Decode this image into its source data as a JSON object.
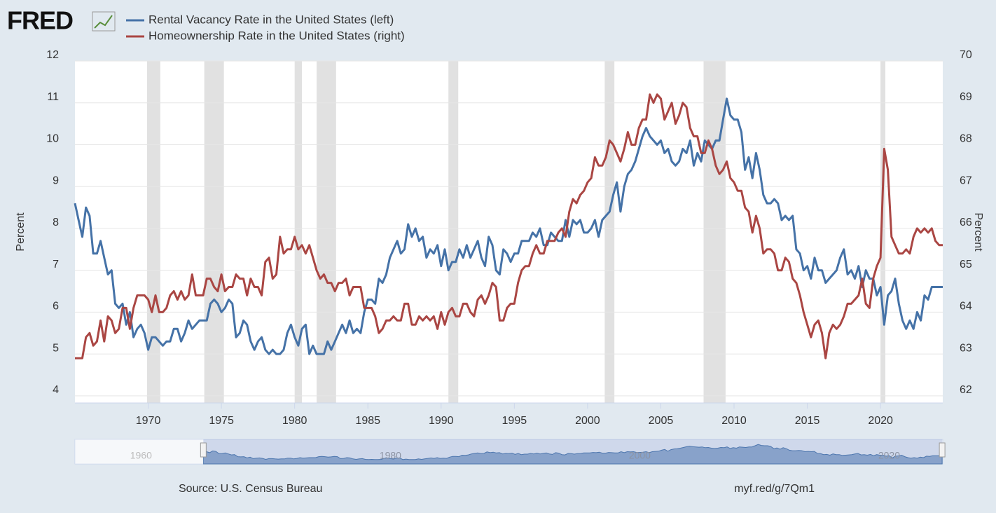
{
  "chart_data": {
    "type": "line",
    "logo": "FRED",
    "source": "Source: U.S. Census Bureau",
    "link": "myf.red/g/7Qm1",
    "ylabel": "Percent",
    "y2label": "Percent",
    "xlim": [
      1965,
      2024.25
    ],
    "xticks": [
      1970,
      1975,
      1980,
      1985,
      1990,
      1995,
      2000,
      2005,
      2010,
      2015,
      2020
    ],
    "ylim": [
      3.83,
      12
    ],
    "yticks": [
      4,
      5,
      6,
      7,
      8,
      9,
      10,
      11,
      12
    ],
    "y2lim": [
      61.83,
      70
    ],
    "y2ticks": [
      62,
      63,
      64,
      65,
      66,
      67,
      68,
      69,
      70
    ],
    "grid": true,
    "recessions": [
      [
        1969.92,
        1970.83
      ],
      [
        1973.83,
        1975.17
      ],
      [
        1980,
        1980.5
      ],
      [
        1981.5,
        1982.83
      ],
      [
        1990.5,
        1991.17
      ],
      [
        2001.17,
        2001.83
      ],
      [
        2007.92,
        2009.42
      ],
      [
        2020,
        2020.33
      ]
    ],
    "navigator": {
      "xlim": [
        1954.7,
        2024.3
      ],
      "xticks": [
        1960,
        1980,
        2000,
        2020
      ]
    },
    "x": [
      1965,
      1965.25,
      1965.5,
      1965.75,
      1966,
      1966.25,
      1966.5,
      1966.75,
      1967,
      1967.25,
      1967.5,
      1967.75,
      1968,
      1968.25,
      1968.5,
      1968.75,
      1969,
      1969.25,
      1969.5,
      1969.75,
      1970,
      1970.25,
      1970.5,
      1970.75,
      1971,
      1971.25,
      1971.5,
      1971.75,
      1972,
      1972.25,
      1972.5,
      1972.75,
      1973,
      1973.25,
      1973.5,
      1973.75,
      1974,
      1974.25,
      1974.5,
      1974.75,
      1975,
      1975.25,
      1975.5,
      1975.75,
      1976,
      1976.25,
      1976.5,
      1976.75,
      1977,
      1977.25,
      1977.5,
      1977.75,
      1978,
      1978.25,
      1978.5,
      1978.75,
      1979,
      1979.25,
      1979.5,
      1979.75,
      1980,
      1980.25,
      1980.5,
      1980.75,
      1981,
      1981.25,
      1981.5,
      1981.75,
      1982,
      1982.25,
      1982.5,
      1982.75,
      1983,
      1983.25,
      1983.5,
      1983.75,
      1984,
      1984.25,
      1984.5,
      1984.75,
      1985,
      1985.25,
      1985.5,
      1985.75,
      1986,
      1986.25,
      1986.5,
      1986.75,
      1987,
      1987.25,
      1987.5,
      1987.75,
      1988,
      1988.25,
      1988.5,
      1988.75,
      1989,
      1989.25,
      1989.5,
      1989.75,
      1990,
      1990.25,
      1990.5,
      1990.75,
      1991,
      1991.25,
      1991.5,
      1991.75,
      1992,
      1992.25,
      1992.5,
      1992.75,
      1993,
      1993.25,
      1993.5,
      1993.75,
      1994,
      1994.25,
      1994.5,
      1994.75,
      1995,
      1995.25,
      1995.5,
      1995.75,
      1996,
      1996.25,
      1996.5,
      1996.75,
      1997,
      1997.25,
      1997.5,
      1997.75,
      1998,
      1998.25,
      1998.5,
      1998.75,
      1999,
      1999.25,
      1999.5,
      1999.75,
      2000,
      2000.25,
      2000.5,
      2000.75,
      2001,
      2001.25,
      2001.5,
      2001.75,
      2002,
      2002.25,
      2002.5,
      2002.75,
      2003,
      2003.25,
      2003.5,
      2003.75,
      2004,
      2004.25,
      2004.5,
      2004.75,
      2005,
      2005.25,
      2005.5,
      2005.75,
      2006,
      2006.25,
      2006.5,
      2006.75,
      2007,
      2007.25,
      2007.5,
      2007.75,
      2008,
      2008.25,
      2008.5,
      2008.75,
      2009,
      2009.25,
      2009.5,
      2009.75,
      2010,
      2010.25,
      2010.5,
      2010.75,
      2011,
      2011.25,
      2011.5,
      2011.75,
      2012,
      2012.25,
      2012.5,
      2012.75,
      2013,
      2013.25,
      2013.5,
      2013.75,
      2014,
      2014.25,
      2014.5,
      2014.75,
      2015,
      2015.25,
      2015.5,
      2015.75,
      2016,
      2016.25,
      2016.5,
      2016.75,
      2017,
      2017.25,
      2017.5,
      2017.75,
      2018,
      2018.25,
      2018.5,
      2018.75,
      2019,
      2019.25,
      2019.5,
      2019.75,
      2020,
      2020.25,
      2020.5,
      2020.75,
      2021,
      2021.25,
      2021.5,
      2021.75,
      2022,
      2022.25,
      2022.5,
      2022.75,
      2023,
      2023.25,
      2023.5,
      2023.75,
      2024,
      2024.25
    ],
    "series": [
      {
        "name": "Rental Vacancy Rate in the United States (left)",
        "color": "#4572a7",
        "axis": "y",
        "values": [
          8.6,
          8.2,
          7.8,
          8.5,
          8.3,
          7.4,
          7.4,
          7.7,
          7.3,
          6.9,
          7.0,
          6.2,
          6.1,
          6.2,
          5.7,
          6.0,
          5.4,
          5.6,
          5.7,
          5.5,
          5.1,
          5.4,
          5.4,
          5.3,
          5.2,
          5.3,
          5.3,
          5.6,
          5.6,
          5.3,
          5.5,
          5.8,
          5.6,
          5.7,
          5.8,
          5.8,
          5.8,
          6.2,
          6.3,
          6.2,
          6.0,
          6.1,
          6.3,
          6.2,
          5.4,
          5.5,
          5.8,
          5.7,
          5.3,
          5.1,
          5.3,
          5.4,
          5.1,
          5.0,
          5.1,
          5.0,
          5.0,
          5.1,
          5.5,
          5.7,
          5.4,
          5.2,
          5.6,
          5.7,
          5.0,
          5.2,
          5.0,
          5.0,
          5.0,
          5.3,
          5.1,
          5.3,
          5.5,
          5.7,
          5.5,
          5.8,
          5.5,
          5.6,
          5.5,
          6.0,
          6.3,
          6.3,
          6.2,
          6.8,
          6.7,
          6.9,
          7.3,
          7.5,
          7.7,
          7.4,
          7.5,
          8.1,
          7.8,
          8.0,
          7.7,
          7.8,
          7.3,
          7.5,
          7.4,
          7.6,
          7.1,
          7.5,
          7.0,
          7.2,
          7.2,
          7.5,
          7.3,
          7.6,
          7.3,
          7.5,
          7.7,
          7.3,
          7.1,
          7.8,
          7.6,
          7.0,
          6.9,
          7.5,
          7.4,
          7.2,
          7.4,
          7.4,
          7.7,
          7.7,
          7.7,
          7.9,
          7.8,
          8.0,
          7.6,
          7.6,
          7.9,
          7.8,
          7.7,
          7.7,
          8.2,
          7.8,
          8.2,
          8.1,
          8.2,
          7.9,
          7.9,
          8.0,
          8.2,
          7.8,
          8.2,
          8.3,
          8.4,
          8.8,
          9.1,
          8.4,
          9.0,
          9.3,
          9.4,
          9.6,
          9.9,
          10.2,
          10.4,
          10.2,
          10.1,
          10.0,
          10.1,
          9.8,
          9.9,
          9.6,
          9.5,
          9.6,
          9.9,
          9.8,
          10.1,
          9.5,
          9.8,
          9.6,
          10.1,
          10.0,
          9.9,
          10.1,
          10.1,
          10.6,
          11.1,
          10.7,
          10.6,
          10.6,
          10.3,
          9.4,
          9.7,
          9.2,
          9.8,
          9.4,
          8.8,
          8.6,
          8.6,
          8.7,
          8.6,
          8.2,
          8.3,
          8.2,
          8.3,
          7.5,
          7.4,
          7.0,
          7.1,
          6.8,
          7.3,
          7.0,
          7.0,
          6.7,
          6.8,
          6.9,
          7.0,
          7.3,
          7.5,
          6.9,
          7.0,
          6.8,
          7.1,
          6.6,
          7.0,
          6.8,
          6.8,
          6.4,
          6.6,
          5.7,
          6.4,
          6.5,
          6.8,
          6.2,
          5.8,
          5.6,
          5.8,
          5.6,
          6.0,
          5.8,
          6.4,
          6.3,
          6.6,
          6.6,
          6.6,
          6.6
        ]
      },
      {
        "name": "Homeownership Rate in the United States (right)",
        "color": "#aa4643",
        "axis": "y2",
        "values": [
          62.9,
          62.9,
          62.9,
          63.4,
          63.5,
          63.2,
          63.3,
          63.8,
          63.3,
          63.9,
          63.8,
          63.5,
          63.6,
          64.1,
          64.1,
          63.6,
          64.1,
          64.4,
          64.4,
          64.4,
          64.3,
          64.0,
          64.4,
          64.0,
          64.0,
          64.1,
          64.4,
          64.5,
          64.3,
          64.5,
          64.3,
          64.4,
          64.9,
          64.4,
          64.4,
          64.4,
          64.8,
          64.8,
          64.6,
          64.5,
          64.9,
          64.5,
          64.6,
          64.6,
          64.9,
          64.8,
          64.8,
          64.4,
          64.8,
          64.6,
          64.6,
          64.4,
          65.2,
          65.3,
          64.8,
          64.9,
          65.8,
          65.4,
          65.5,
          65.5,
          65.8,
          65.5,
          65.6,
          65.4,
          65.6,
          65.3,
          65.0,
          64.8,
          64.9,
          64.7,
          64.7,
          64.5,
          64.7,
          64.7,
          64.8,
          64.4,
          64.6,
          64.6,
          64.6,
          64.1,
          64.1,
          64.1,
          63.9,
          63.5,
          63.6,
          63.8,
          63.8,
          63.9,
          63.8,
          63.8,
          64.2,
          64.2,
          63.7,
          63.7,
          63.9,
          63.8,
          63.9,
          63.8,
          63.9,
          63.6,
          64.0,
          63.7,
          64.0,
          64.1,
          63.9,
          63.9,
          64.2,
          64.2,
          64.0,
          63.9,
          64.3,
          64.4,
          64.2,
          64.4,
          64.7,
          64.6,
          63.8,
          63.8,
          64.1,
          64.2,
          64.2,
          64.7,
          65.0,
          65.1,
          65.1,
          65.4,
          65.6,
          65.4,
          65.4,
          65.7,
          65.7,
          65.7,
          65.9,
          66.0,
          65.8,
          66.4,
          66.7,
          66.6,
          66.8,
          66.9,
          67.1,
          67.2,
          67.7,
          67.5,
          67.5,
          67.7,
          68.1,
          68.0,
          67.8,
          67.6,
          67.9,
          68.3,
          68.0,
          68.0,
          68.4,
          68.6,
          68.6,
          69.2,
          69.0,
          69.2,
          69.1,
          68.6,
          68.8,
          69.0,
          68.5,
          68.7,
          69.0,
          68.9,
          68.4,
          68.2,
          68.2,
          67.8,
          67.8,
          68.1,
          67.9,
          67.5,
          67.3,
          67.4,
          67.6,
          67.2,
          67.1,
          66.9,
          66.9,
          66.5,
          66.4,
          65.9,
          66.3,
          66.0,
          65.4,
          65.5,
          65.5,
          65.4,
          65.0,
          65.0,
          65.3,
          65.2,
          64.8,
          64.7,
          64.4,
          64.0,
          63.7,
          63.4,
          63.7,
          63.8,
          63.5,
          62.9,
          63.5,
          63.7,
          63.6,
          63.7,
          63.9,
          64.2,
          64.2,
          64.3,
          64.4,
          64.8,
          64.2,
          64.1,
          64.8,
          65.1,
          65.3,
          67.9,
          67.4,
          65.8,
          65.6,
          65.4,
          65.4,
          65.5,
          65.4,
          65.8,
          66.0,
          65.9,
          66.0,
          65.9,
          66.0,
          65.7,
          65.6,
          65.6
        ]
      }
    ]
  }
}
